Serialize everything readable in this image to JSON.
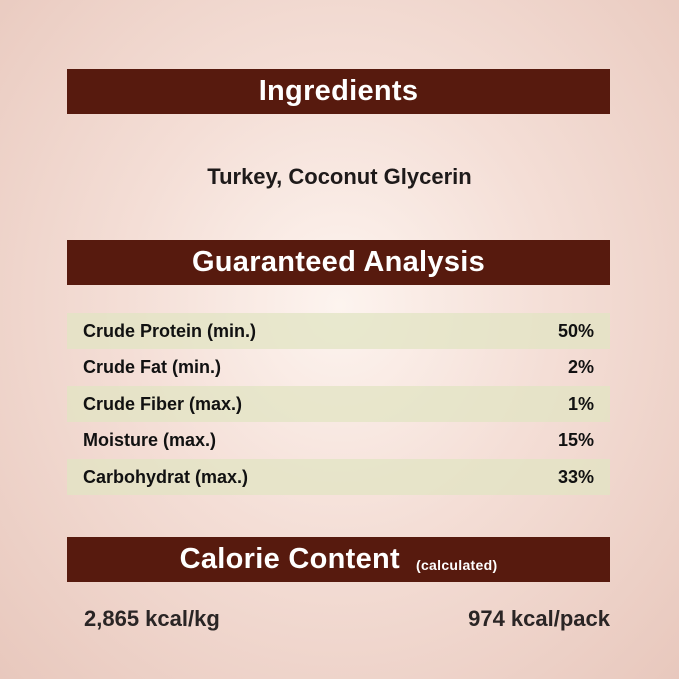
{
  "ingredients": {
    "title": "Ingredients",
    "text": "Turkey, Coconut Glycerin"
  },
  "analysis": {
    "title": "Guaranteed Analysis",
    "rows": [
      {
        "label": "Crude Protein (min.)",
        "value": "50%"
      },
      {
        "label": "Crude Fat (min.)",
        "value": "2%"
      },
      {
        "label": "Crude Fiber (max.)",
        "value": "1%"
      },
      {
        "label": "Moisture (max.)",
        "value": "15%"
      },
      {
        "label": "Carbohydrat (max.)",
        "value": "33%"
      }
    ]
  },
  "calorie": {
    "title": "Calorie Content",
    "subtitle": "(calculated)",
    "per_kg": "2,865 kcal/kg",
    "per_pack": "974 kcal/pack"
  },
  "colors": {
    "header_bg": "#571a0e",
    "row_shade": "#e1e4c3"
  }
}
